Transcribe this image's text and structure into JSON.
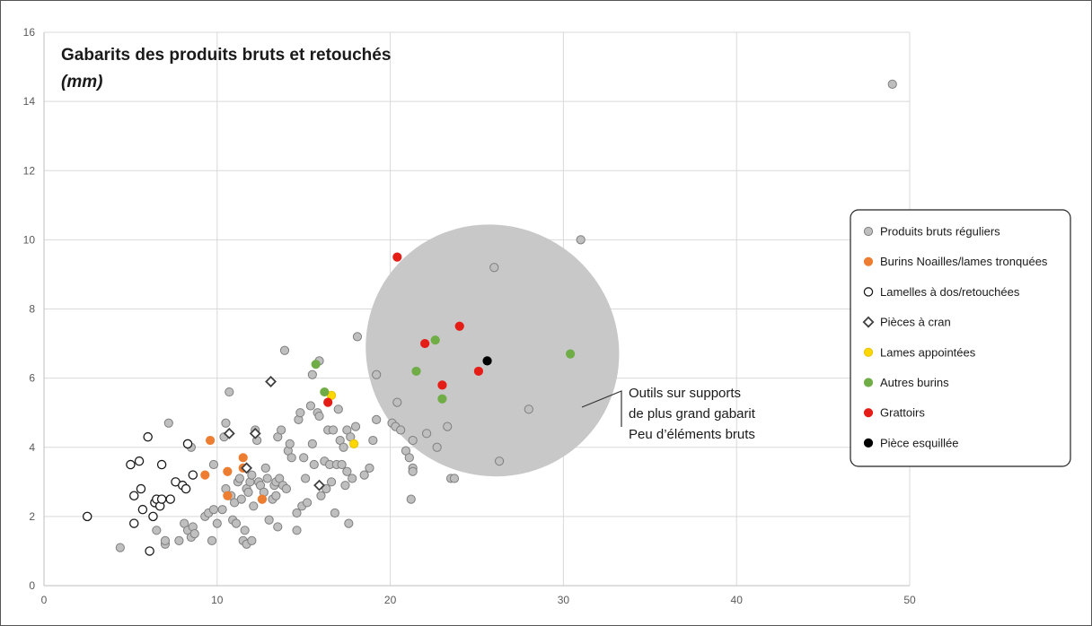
{
  "chart_data": {
    "type": "scatter",
    "title": "Gabarits des produits bruts et retouchés",
    "subtitle": "(mm)",
    "xlabel": "",
    "ylabel": "",
    "xlim": [
      0,
      50
    ],
    "ylim": [
      0,
      16
    ],
    "xticks": [
      0,
      10,
      20,
      30,
      40,
      50
    ],
    "yticks": [
      0,
      2,
      4,
      6,
      8,
      10,
      12,
      14,
      16
    ],
    "grid": true,
    "legend_position": "right",
    "annotation": {
      "lines": [
        "Outils sur supports",
        "de plus grand gabarit",
        "Peu d’éléments bruts"
      ],
      "ellipse": {
        "cx": 25.9,
        "cy": 6.8,
        "rx": 7.4,
        "ry": 3.6,
        "angle_deg": 40,
        "color": "#c8c8c8"
      }
    },
    "series": [
      {
        "name": "Produits bruts réguliers",
        "marker": "circle",
        "fill": "#bfbfbf",
        "stroke": "#7f7f7f",
        "points": [
          [
            4.4,
            1.1
          ],
          [
            6.5,
            1.6
          ],
          [
            7.0,
            1.2
          ],
          [
            7.0,
            1.3
          ],
          [
            7.8,
            1.3
          ],
          [
            8.1,
            1.8
          ],
          [
            8.3,
            1.6
          ],
          [
            8.5,
            1.4
          ],
          [
            8.6,
            1.7
          ],
          [
            8.7,
            1.5
          ],
          [
            7.2,
            4.7
          ],
          [
            8.5,
            4.0
          ],
          [
            9.3,
            2.0
          ],
          [
            9.5,
            2.1
          ],
          [
            9.7,
            1.3
          ],
          [
            9.8,
            2.2
          ],
          [
            9.8,
            3.5
          ],
          [
            10.0,
            1.8
          ],
          [
            10.3,
            2.2
          ],
          [
            10.4,
            4.3
          ],
          [
            10.5,
            4.7
          ],
          [
            10.5,
            2.8
          ],
          [
            10.7,
            5.6
          ],
          [
            10.8,
            2.6
          ],
          [
            10.9,
            1.9
          ],
          [
            11.0,
            2.4
          ],
          [
            11.1,
            1.8
          ],
          [
            11.2,
            3.0
          ],
          [
            11.3,
            3.1
          ],
          [
            11.4,
            2.5
          ],
          [
            11.5,
            1.3
          ],
          [
            11.6,
            1.6
          ],
          [
            11.7,
            1.2
          ],
          [
            11.7,
            2.8
          ],
          [
            11.8,
            2.7
          ],
          [
            11.9,
            3.0
          ],
          [
            12.0,
            3.2
          ],
          [
            12.0,
            1.3
          ],
          [
            12.1,
            2.3
          ],
          [
            12.2,
            4.5
          ],
          [
            12.3,
            4.2
          ],
          [
            12.4,
            3.0
          ],
          [
            12.5,
            2.9
          ],
          [
            12.6,
            2.5
          ],
          [
            12.7,
            2.7
          ],
          [
            12.8,
            3.4
          ],
          [
            12.9,
            3.1
          ],
          [
            13.0,
            1.9
          ],
          [
            13.2,
            2.5
          ],
          [
            13.3,
            2.9
          ],
          [
            13.4,
            2.6
          ],
          [
            13.4,
            3.0
          ],
          [
            13.5,
            1.7
          ],
          [
            13.5,
            4.3
          ],
          [
            13.6,
            3.1
          ],
          [
            13.7,
            4.5
          ],
          [
            13.8,
            2.9
          ],
          [
            13.9,
            6.8
          ],
          [
            14.0,
            2.8
          ],
          [
            14.1,
            3.9
          ],
          [
            14.2,
            4.1
          ],
          [
            14.3,
            3.7
          ],
          [
            14.6,
            2.1
          ],
          [
            14.6,
            1.6
          ],
          [
            14.7,
            4.8
          ],
          [
            14.8,
            5.0
          ],
          [
            14.9,
            2.3
          ],
          [
            15.0,
            3.7
          ],
          [
            15.1,
            3.1
          ],
          [
            15.2,
            2.4
          ],
          [
            15.4,
            5.2
          ],
          [
            15.5,
            6.1
          ],
          [
            15.5,
            4.1
          ],
          [
            15.6,
            3.5
          ],
          [
            15.8,
            5.0
          ],
          [
            15.9,
            6.5
          ],
          [
            15.9,
            4.9
          ],
          [
            16.0,
            2.6
          ],
          [
            16.2,
            3.6
          ],
          [
            16.3,
            2.8
          ],
          [
            16.4,
            4.5
          ],
          [
            16.5,
            3.5
          ],
          [
            16.6,
            3.0
          ],
          [
            16.7,
            4.5
          ],
          [
            16.8,
            2.1
          ],
          [
            16.9,
            3.5
          ],
          [
            17.0,
            5.1
          ],
          [
            17.1,
            4.2
          ],
          [
            17.2,
            3.5
          ],
          [
            17.3,
            4.0
          ],
          [
            17.4,
            2.9
          ],
          [
            17.5,
            4.5
          ],
          [
            17.5,
            3.3
          ],
          [
            17.6,
            1.8
          ],
          [
            17.7,
            4.3
          ],
          [
            17.8,
            3.1
          ],
          [
            18.1,
            7.2
          ],
          [
            18.0,
            4.6
          ],
          [
            18.5,
            3.2
          ],
          [
            18.8,
            3.4
          ],
          [
            19.2,
            6.1
          ],
          [
            19.2,
            4.8
          ],
          [
            19.0,
            4.2
          ],
          [
            20.1,
            4.7
          ],
          [
            20.3,
            4.6
          ],
          [
            20.4,
            5.3
          ],
          [
            20.6,
            4.5
          ],
          [
            20.9,
            3.9
          ],
          [
            21.1,
            3.7
          ],
          [
            21.3,
            3.4
          ],
          [
            21.3,
            3.3
          ],
          [
            21.2,
            2.5
          ],
          [
            21.3,
            4.2
          ],
          [
            22.1,
            4.4
          ],
          [
            22.7,
            4.0
          ],
          [
            23.3,
            4.6
          ],
          [
            23.5,
            3.1
          ],
          [
            23.7,
            3.1
          ],
          [
            26.0,
            9.2
          ],
          [
            26.3,
            3.6
          ],
          [
            28.0,
            5.1
          ],
          [
            31.0,
            10.0
          ],
          [
            49.0,
            14.5
          ]
        ]
      },
      {
        "name": "Burins Noailles/lames tronquées",
        "marker": "circle",
        "fill": "#ed7d31",
        "stroke": "#ed7d31",
        "points": [
          [
            9.6,
            4.2
          ],
          [
            9.3,
            3.2
          ],
          [
            10.6,
            3.3
          ],
          [
            10.6,
            2.6
          ],
          [
            11.5,
            3.7
          ],
          [
            11.5,
            3.4
          ],
          [
            12.6,
            2.5
          ]
        ]
      },
      {
        "name": "Lamelles à dos/retouchées",
        "marker": "circle-open",
        "fill": "#ffffff",
        "stroke": "#1a1a1a",
        "points": [
          [
            2.5,
            2.0
          ],
          [
            5.0,
            3.5
          ],
          [
            5.2,
            2.6
          ],
          [
            5.2,
            1.8
          ],
          [
            5.5,
            3.6
          ],
          [
            5.6,
            2.8
          ],
          [
            5.7,
            2.2
          ],
          [
            6.0,
            4.3
          ],
          [
            6.1,
            1.0
          ],
          [
            6.3,
            2.0
          ],
          [
            6.4,
            2.4
          ],
          [
            6.5,
            2.5
          ],
          [
            6.7,
            2.3
          ],
          [
            6.8,
            3.5
          ],
          [
            6.8,
            2.5
          ],
          [
            7.3,
            2.5
          ],
          [
            7.6,
            3.0
          ],
          [
            8.0,
            2.9
          ],
          [
            8.2,
            2.8
          ],
          [
            8.3,
            4.1
          ],
          [
            8.6,
            3.2
          ]
        ]
      },
      {
        "name": "Pièces à cran",
        "marker": "diamond-open",
        "fill": "#ffffff",
        "stroke": "#404040",
        "points": [
          [
            10.7,
            4.4
          ],
          [
            11.7,
            3.4
          ],
          [
            12.2,
            4.4
          ],
          [
            13.1,
            5.9
          ],
          [
            15.9,
            2.9
          ]
        ]
      },
      {
        "name": "Lames appointées",
        "marker": "circle",
        "fill": "#ffd700",
        "stroke": "#e6c200",
        "points": [
          [
            16.6,
            5.5
          ],
          [
            17.9,
            4.1
          ]
        ]
      },
      {
        "name": "Autres burins",
        "marker": "circle",
        "fill": "#70ad47",
        "stroke": "#70ad47",
        "points": [
          [
            15.7,
            6.4
          ],
          [
            16.2,
            5.6
          ],
          [
            21.5,
            6.2
          ],
          [
            22.6,
            7.1
          ],
          [
            23.0,
            5.4
          ],
          [
            30.4,
            6.7
          ]
        ]
      },
      {
        "name": "Grattoirs",
        "marker": "circle",
        "fill": "#e41e17",
        "stroke": "#e41e17",
        "points": [
          [
            16.4,
            5.3
          ],
          [
            20.4,
            9.5
          ],
          [
            22.0,
            7.0
          ],
          [
            23.0,
            5.8
          ],
          [
            24.0,
            7.5
          ],
          [
            25.1,
            6.2
          ]
        ]
      },
      {
        "name": "Pièce esquillée",
        "marker": "circle",
        "fill": "#000000",
        "stroke": "#000000",
        "points": [
          [
            25.6,
            6.5
          ]
        ]
      }
    ]
  }
}
